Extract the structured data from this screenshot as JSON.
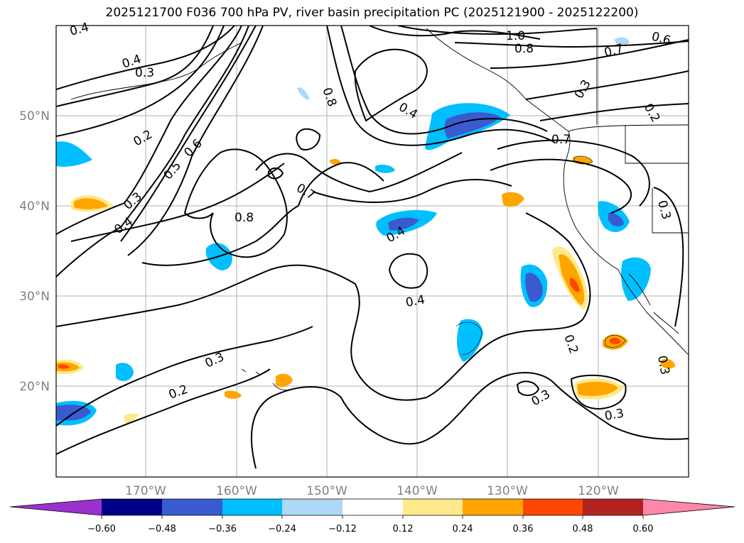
{
  "title": "2025121700 F036 700 hPa PV, river basin precipitation PC (2025121900 - 2025122200)",
  "map": {
    "lon_labels": [
      "170°W",
      "160°W",
      "150°W",
      "140°W",
      "130°W",
      "120°W"
    ],
    "lat_labels": [
      "50°N",
      "40°N",
      "30°N",
      "20°N"
    ],
    "contour_labels": [
      "0.4",
      "0.4",
      "0.3",
      "0.2",
      "0.3",
      "0.4",
      "0.5",
      "0.6",
      "0.8",
      "0.7",
      "0.8",
      "0.4",
      "1.0",
      "0.8",
      "0.7",
      "0.6",
      "0.3",
      "0.2",
      "0.7",
      "0.4",
      "0.4",
      "0.3",
      "0.2",
      "0.2",
      "0.3",
      "0.3",
      "0.3",
      "0.3"
    ]
  },
  "colorbar": {
    "tick_labels": [
      "−0.60",
      "−0.48",
      "−0.36",
      "−0.24",
      "−0.12",
      "0.12",
      "0.24",
      "0.36",
      "0.48",
      "0.60"
    ],
    "colors": [
      "#9932cc",
      "#00008b",
      "#3a5bd0",
      "#00bfff",
      "#add8f7",
      "#ffffff",
      "#ffe98a",
      "#ffa500",
      "#ff4500",
      "#b22222",
      "#ff88aa"
    ]
  }
}
